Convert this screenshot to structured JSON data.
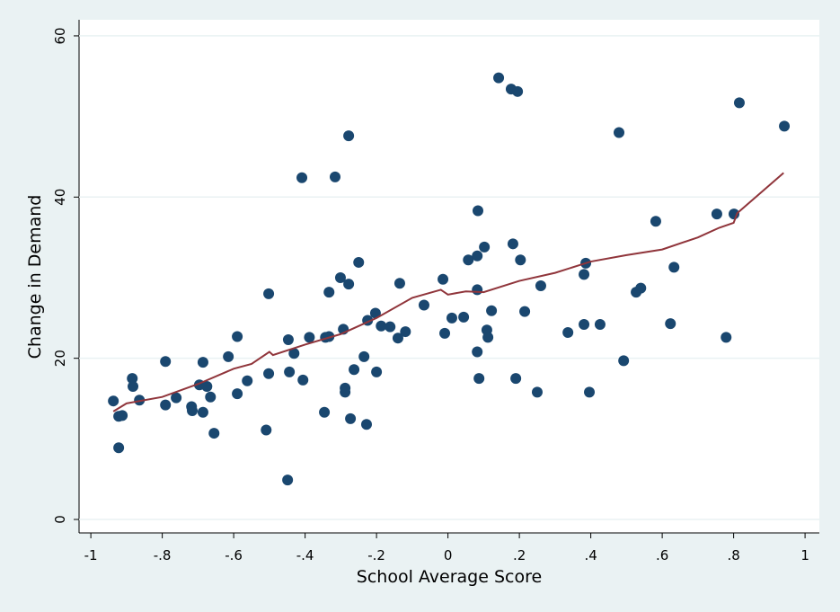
{
  "chart_data": {
    "type": "scatter",
    "x_label": "School Average Score",
    "y_label": "Change in Demand",
    "x": [
      -0.937,
      -0.922,
      -0.912,
      -0.922,
      -0.884,
      -0.882,
      -0.864,
      -0.791,
      -0.791,
      -0.761,
      -0.718,
      -0.716,
      -0.696,
      -0.686,
      -0.675,
      -0.686,
      -0.665,
      -0.655,
      -0.615,
      -0.59,
      -0.59,
      -0.562,
      -0.509,
      -0.502,
      -0.502,
      -0.449,
      -0.447,
      -0.444,
      -0.431,
      -0.409,
      -0.406,
      -0.388,
      -0.346,
      -0.343,
      -0.333,
      -0.333,
      -0.316,
      -0.301,
      -0.293,
      -0.288,
      -0.288,
      -0.278,
      -0.278,
      -0.273,
      -0.263,
      -0.25,
      -0.235,
      -0.228,
      -0.225,
      -0.203,
      -0.2,
      -0.187,
      -0.162,
      -0.14,
      -0.135,
      -0.119,
      -0.067,
      -0.014,
      -0.009,
      0.011,
      0.044,
      0.057,
      0.082,
      0.082,
      0.084,
      0.082,
      0.087,
      0.102,
      0.109,
      0.112,
      0.122,
      0.142,
      0.177,
      0.182,
      0.19,
      0.195,
      0.203,
      0.215,
      0.25,
      0.26,
      0.336,
      0.381,
      0.381,
      0.386,
      0.396,
      0.426,
      0.479,
      0.492,
      0.527,
      0.54,
      0.582,
      0.623,
      0.633,
      0.753,
      0.779,
      0.801,
      0.816,
      0.942
    ],
    "values": [
      14.7,
      12.8,
      12.9,
      8.9,
      17.5,
      16.5,
      14.8,
      19.6,
      14.2,
      15.1,
      14.0,
      13.5,
      16.7,
      19.5,
      16.5,
      13.3,
      15.2,
      10.7,
      20.2,
      22.7,
      15.6,
      17.2,
      11.1,
      28.0,
      18.1,
      4.9,
      22.3,
      18.3,
      20.6,
      42.4,
      17.3,
      22.6,
      13.3,
      22.6,
      22.7,
      28.2,
      42.5,
      30.0,
      23.6,
      16.3,
      15.8,
      29.2,
      47.6,
      12.5,
      18.6,
      31.9,
      20.2,
      11.8,
      24.7,
      25.6,
      18.3,
      24.0,
      23.9,
      22.5,
      29.3,
      23.3,
      26.6,
      29.8,
      23.1,
      25.0,
      25.1,
      32.2,
      32.7,
      28.5,
      38.3,
      20.8,
      17.5,
      33.8,
      23.5,
      22.6,
      25.9,
      54.8,
      53.4,
      34.2,
      17.5,
      53.1,
      32.2,
      25.8,
      15.8,
      29.0,
      23.2,
      24.2,
      30.4,
      31.8,
      15.8,
      24.2,
      48.0,
      19.7,
      28.2,
      28.7,
      37.0,
      24.3,
      31.3,
      37.9,
      22.6,
      37.9,
      51.7,
      48.8
    ],
    "color": "#1a476f",
    "fit": {
      "x": [
        -0.937,
        -0.9,
        -0.8,
        -0.7,
        -0.6,
        -0.55,
        -0.5,
        -0.49,
        -0.4,
        -0.3,
        -0.2,
        -0.1,
        -0.02,
        0,
        0.05,
        0.1,
        0.2,
        0.3,
        0.4,
        0.5,
        0.6,
        0.7,
        0.76,
        0.8,
        0.81,
        0.94
      ],
      "values": [
        13.4,
        14.4,
        15.2,
        16.8,
        18.7,
        19.3,
        20.8,
        20.4,
        21.7,
        23.0,
        25.0,
        27.5,
        28.5,
        27.9,
        28.3,
        28.2,
        29.6,
        30.6,
        32.0,
        32.8,
        33.5,
        35.0,
        36.2,
        36.8,
        38.0,
        43.0
      ],
      "color": "#90353b"
    },
    "xlim": [
      -1.033,
      1.04
    ],
    "ylim": [
      -1.67,
      62
    ],
    "xticks": [
      -1,
      {
        "value": -0.8,
        "label": "-.8"
      },
      {
        "value": -0.6,
        "label": "-.6"
      },
      {
        "value": -0.4,
        "label": "-.4"
      },
      {
        "value": -0.2,
        "label": "-.2"
      },
      0,
      {
        "value": 0.2,
        "label": ".2"
      },
      {
        "value": 0.4,
        "label": ".4"
      },
      {
        "value": 0.6,
        "label": ".6"
      },
      {
        "value": 0.8,
        "label": ".8"
      },
      1
    ],
    "yticks": [
      0,
      20,
      40,
      60
    ],
    "grid": true
  }
}
